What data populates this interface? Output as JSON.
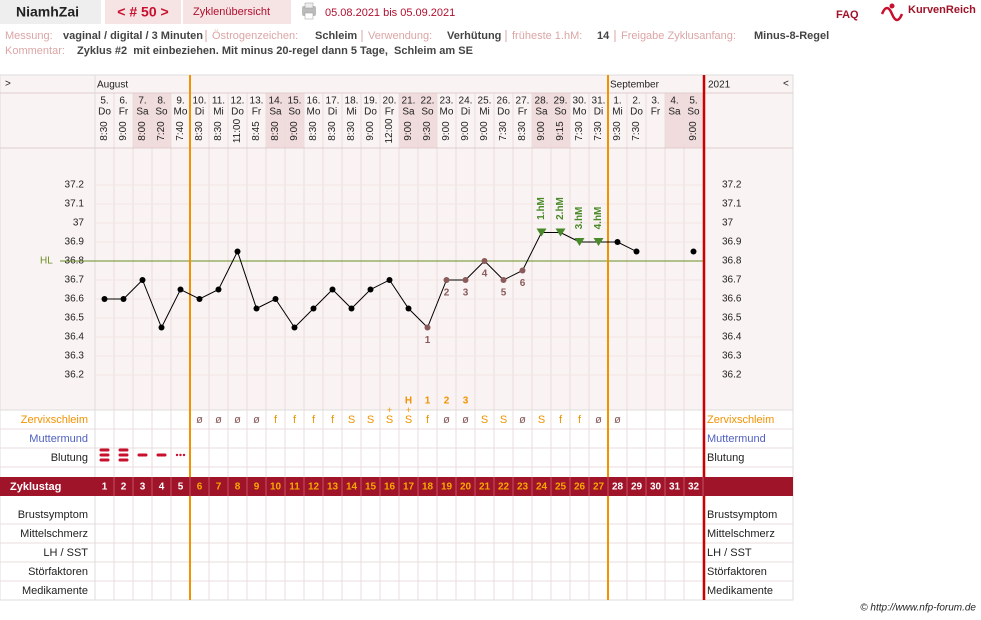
{
  "header": {
    "user": "NiamhZai",
    "cycle": "< # 50 >",
    "overview": "Zyklenübersicht",
    "period": "05.08.2021 bis 05.09.2021",
    "faq": "FAQ",
    "brand": "KurvenReich"
  },
  "info": {
    "fields": [
      {
        "label": "Messung:",
        "value": "vaginal / digital / 3 Minuten"
      },
      {
        "label": "Östrogenzeichen:",
        "value": "Schleim"
      },
      {
        "label": "Verwendung:",
        "value": "Verhütung"
      },
      {
        "label": "früheste 1.hM:",
        "value": "14"
      },
      {
        "label": "Freigabe Zyklusanfang:",
        "value": "Minus-8-Regel"
      }
    ],
    "comment_label": "Kommentar:",
    "comment": "Zyklus #2  mit einbeziehen. Mit minus 20-regel dann 5 Tage,  Schleim am SE"
  },
  "chart_data": {
    "type": "line",
    "nav_left": ">",
    "nav_right": "<",
    "months": [
      "August",
      "September"
    ],
    "year": "2021",
    "dates": [
      "5.",
      "6.",
      "7.",
      "8.",
      "9.",
      "10.",
      "11.",
      "12.",
      "13.",
      "14.",
      "15.",
      "16.",
      "17.",
      "18.",
      "19.",
      "20.",
      "21.",
      "22.",
      "23.",
      "24.",
      "25.",
      "26.",
      "27.",
      "28.",
      "29.",
      "30.",
      "31.",
      "1.",
      "2.",
      "3.",
      "4.",
      "5."
    ],
    "weekdays": [
      "Do",
      "Fr",
      "Sa",
      "So",
      "Mo",
      "Di",
      "Mi",
      "Do",
      "Fr",
      "Sa",
      "So",
      "Mo",
      "Di",
      "Mi",
      "Do",
      "Fr",
      "Sa",
      "So",
      "Mo",
      "Di",
      "Mi",
      "Do",
      "Fr",
      "Sa",
      "So",
      "Mo",
      "Di",
      "Mi",
      "Do",
      "Fr",
      "Sa",
      "So"
    ],
    "times": [
      "8:30",
      "9:00",
      "8:00",
      "7:20",
      "7:40",
      "8:30",
      "8:30",
      "11:00",
      "8:45",
      "8:30",
      "9:00",
      "8:30",
      "8:30",
      "8:30",
      "9:00",
      "12:00",
      "9:00",
      "9:30",
      "9:00",
      "9:00",
      "9:00",
      "7:30",
      "8:30",
      "9:00",
      "9:15",
      "7:30",
      "7:30",
      "9:30",
      "7:30",
      null,
      null,
      "9:00"
    ],
    "values": [
      36.6,
      36.6,
      36.7,
      36.45,
      36.65,
      36.6,
      36.65,
      36.85,
      36.55,
      36.6,
      36.45,
      36.55,
      36.65,
      36.55,
      36.65,
      36.7,
      36.55,
      36.45,
      36.7,
      36.7,
      36.8,
      36.7,
      36.75,
      36.95,
      36.95,
      36.9,
      36.9,
      36.9,
      36.85,
      null,
      null,
      36.85
    ],
    "color": "#000000",
    "ylim": [
      36.0,
      37.4
    ],
    "yticks": [
      36.2,
      36.3,
      36.4,
      36.5,
      36.6,
      36.7,
      36.8,
      36.9,
      37,
      37.1,
      37.2
    ],
    "coverline": {
      "label": "HL",
      "value": 36.8,
      "color": "#6b8e23"
    },
    "low_labels": [
      null,
      null,
      null,
      null,
      null,
      null,
      null,
      null,
      null,
      null,
      null,
      null,
      null,
      null,
      null,
      null,
      null,
      1,
      2,
      3,
      4,
      5,
      6,
      null,
      null,
      null,
      null,
      null,
      null,
      null,
      null,
      null
    ],
    "high_labels": [
      null,
      null,
      null,
      null,
      null,
      null,
      null,
      null,
      null,
      null,
      null,
      null,
      null,
      null,
      null,
      null,
      null,
      null,
      null,
      null,
      null,
      null,
      null,
      "1.hM",
      "2.hM",
      "3.hM",
      "4.hM",
      null,
      null,
      null,
      null,
      null
    ],
    "peak_labels": [
      null,
      null,
      null,
      null,
      null,
      null,
      null,
      null,
      null,
      null,
      null,
      null,
      null,
      null,
      null,
      null,
      "H",
      "1",
      "2",
      "3",
      null,
      null,
      null,
      null,
      null,
      null,
      null,
      null,
      null,
      null,
      null,
      null
    ],
    "mucus": [
      null,
      null,
      null,
      null,
      null,
      "ø",
      "ø",
      "ø",
      "ø",
      "f",
      "f",
      "f",
      "f",
      "S",
      "S",
      "S+",
      "S+",
      "f",
      "ø",
      "ø",
      "S",
      "S",
      "ø",
      "S",
      "f",
      "f",
      "ø",
      "ø",
      null,
      null,
      null,
      null
    ],
    "cycle_days": [
      1,
      2,
      3,
      4,
      5,
      6,
      7,
      8,
      9,
      10,
      11,
      12,
      13,
      14,
      15,
      16,
      17,
      18,
      19,
      20,
      21,
      22,
      23,
      24,
      25,
      26,
      27,
      28,
      29,
      30,
      31,
      32
    ],
    "fertile_start_day": 6,
    "fertile_end_day": 27,
    "rows_top": [
      "Zervixschleim",
      "Muttermund",
      "Blutung"
    ],
    "cycle_row": "Zyklustag",
    "rows_bottom": [
      "Brustsymptom",
      "Mittelschmerz",
      "LH / SST",
      "Störfaktoren",
      "Medikamente"
    ]
  },
  "footer": "© http://www.nfp-forum.de"
}
